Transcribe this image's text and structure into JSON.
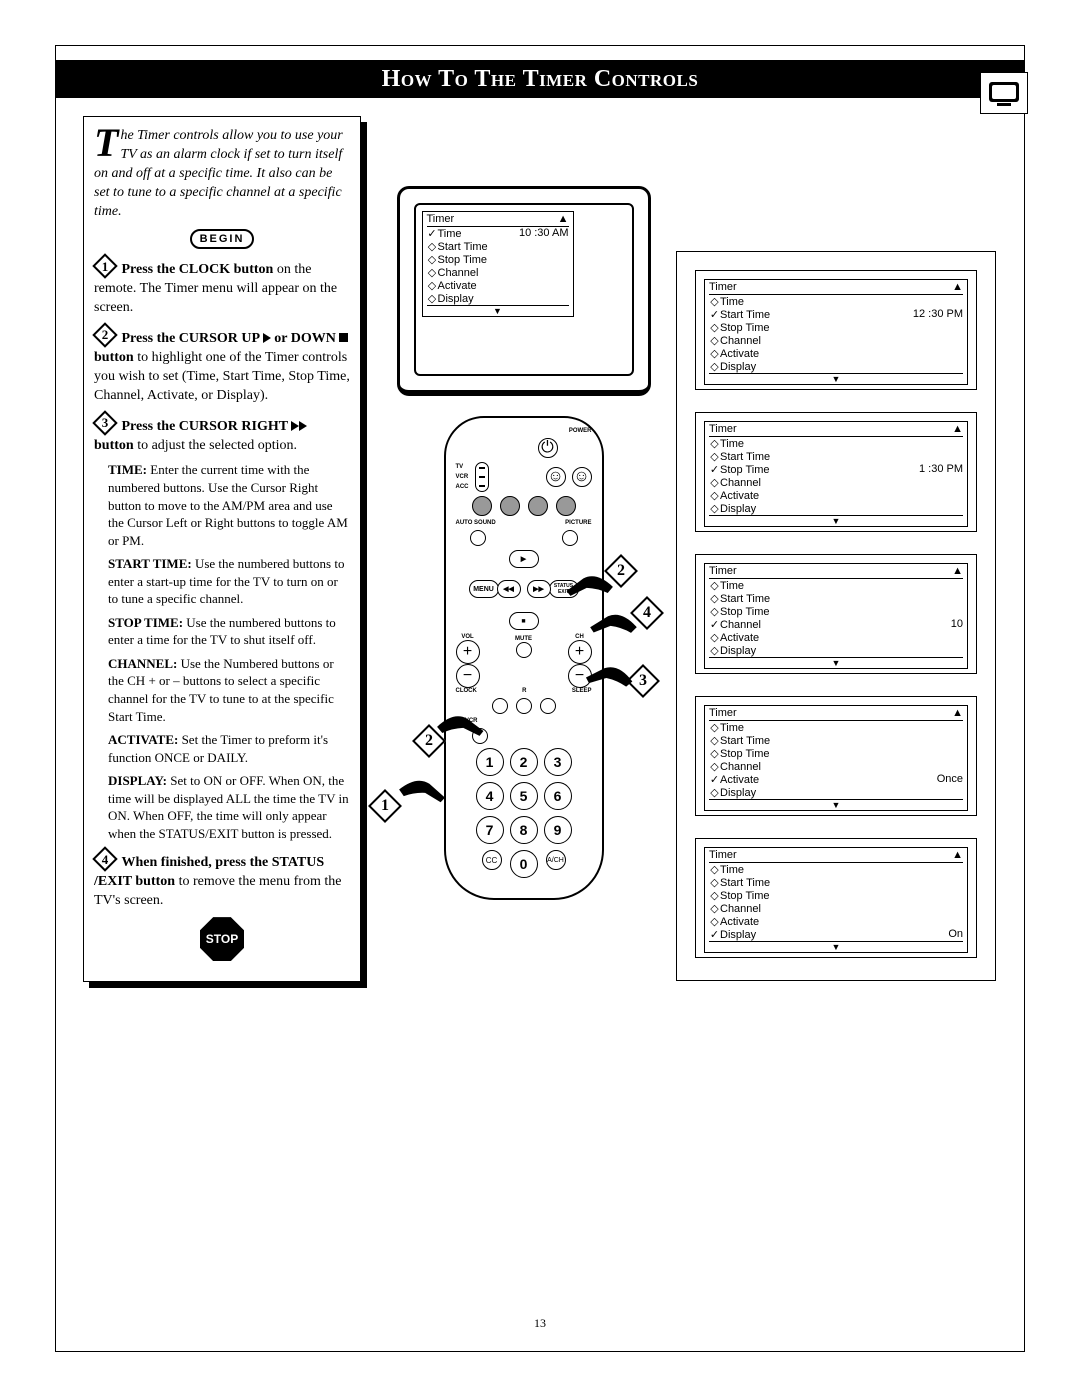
{
  "page_number": "13",
  "title": "How To The Timer Controls",
  "colors": {
    "text": "#000000",
    "background": "#ffffff",
    "title_bg": "#000000",
    "title_fg": "#ffffff",
    "remote_gray": "#999999"
  },
  "intro": "he Timer controls allow you to use your TV as an alarm clock if set to turn itself on and off at a specific time. It also can be set to tune to a specific channel at a specific time.",
  "begin_label": "BEGIN",
  "stop_label": "STOP",
  "steps": [
    {
      "n": "1",
      "bold": "Press the CLOCK button",
      "rest": " on the remote. The Timer menu will appear on the screen."
    },
    {
      "n": "2",
      "bold": "Press the CURSOR UP ▶ or DOWN ■ button",
      "rest": " to highlight one of the Timer controls you wish to set (Time, Start Time, Stop Time, Channel, Activate, or Display)."
    },
    {
      "n": "3",
      "bold": "Press the CURSOR RIGHT ▶▶ button",
      "rest": " to adjust the selected option."
    },
    {
      "n": "4",
      "bold": "When finished, press the STATUS /EXIT button",
      "rest": " to remove the menu from the TV's screen."
    }
  ],
  "subitems": [
    {
      "h": "TIME:",
      "t": " Enter the current time with the numbered buttons. Use the Cursor Right button to move to the AM/PM area and use the Cursor Left or Right buttons to toggle AM or PM."
    },
    {
      "h": "START TIME:",
      "t": " Use the numbered buttons to enter a start-up time for the TV to turn on or to tune a specific channel."
    },
    {
      "h": "STOP TIME:",
      "t": " Use the numbered buttons to enter a time for the TV to shut itself off."
    },
    {
      "h": "CHANNEL:",
      "t": " Use the Numbered buttons or the CH + or – buttons to select a specific channel for the TV to tune to at the specific Start Time."
    },
    {
      "h": "ACTIVATE:",
      "t": " Set the Timer to preform it's function ONCE or DAILY."
    },
    {
      "h": "DISPLAY:",
      "t": " Set to ON or OFF. When ON, the time will be displayed ALL the time the TV in ON. When OFF, the time will only appear when the STATUS/EXIT button is pressed."
    }
  ],
  "menu_labels": {
    "header": "Timer",
    "items": [
      "Time",
      "Start Time",
      "Stop Time",
      "Channel",
      "Activate",
      "Display"
    ]
  },
  "tv_menu": {
    "selected_index": 0,
    "value": "10 :30 AM"
  },
  "side_menus": [
    {
      "selected_index": 1,
      "value": "12 :30 PM"
    },
    {
      "selected_index": 2,
      "value": "1 :30 PM"
    },
    {
      "selected_index": 3,
      "value": "10"
    },
    {
      "selected_index": 4,
      "value": "Once"
    },
    {
      "selected_index": 5,
      "value": "On"
    }
  ],
  "remote_labels": {
    "power": "POWER",
    "tv": "TV",
    "vcr": "VCR",
    "acc": "ACC",
    "auto_sound": "AUTO SOUND",
    "picture": "PICTURE",
    "menu": "MENU",
    "status_exit": "STATUS EXIT",
    "mute": "MUTE",
    "vol": "VOL",
    "ch": "CH",
    "clock": "CLOCK",
    "r": "R",
    "sleep": "SLEEP",
    "tvvcr": "TV/VCR",
    "cc": "CC",
    "zero": "0",
    "ach": "A/CH"
  },
  "numpad": [
    "1",
    "2",
    "3",
    "4",
    "5",
    "6",
    "7",
    "8",
    "9"
  ],
  "callouts": [
    "1",
    "2",
    "2",
    "3",
    "4"
  ]
}
